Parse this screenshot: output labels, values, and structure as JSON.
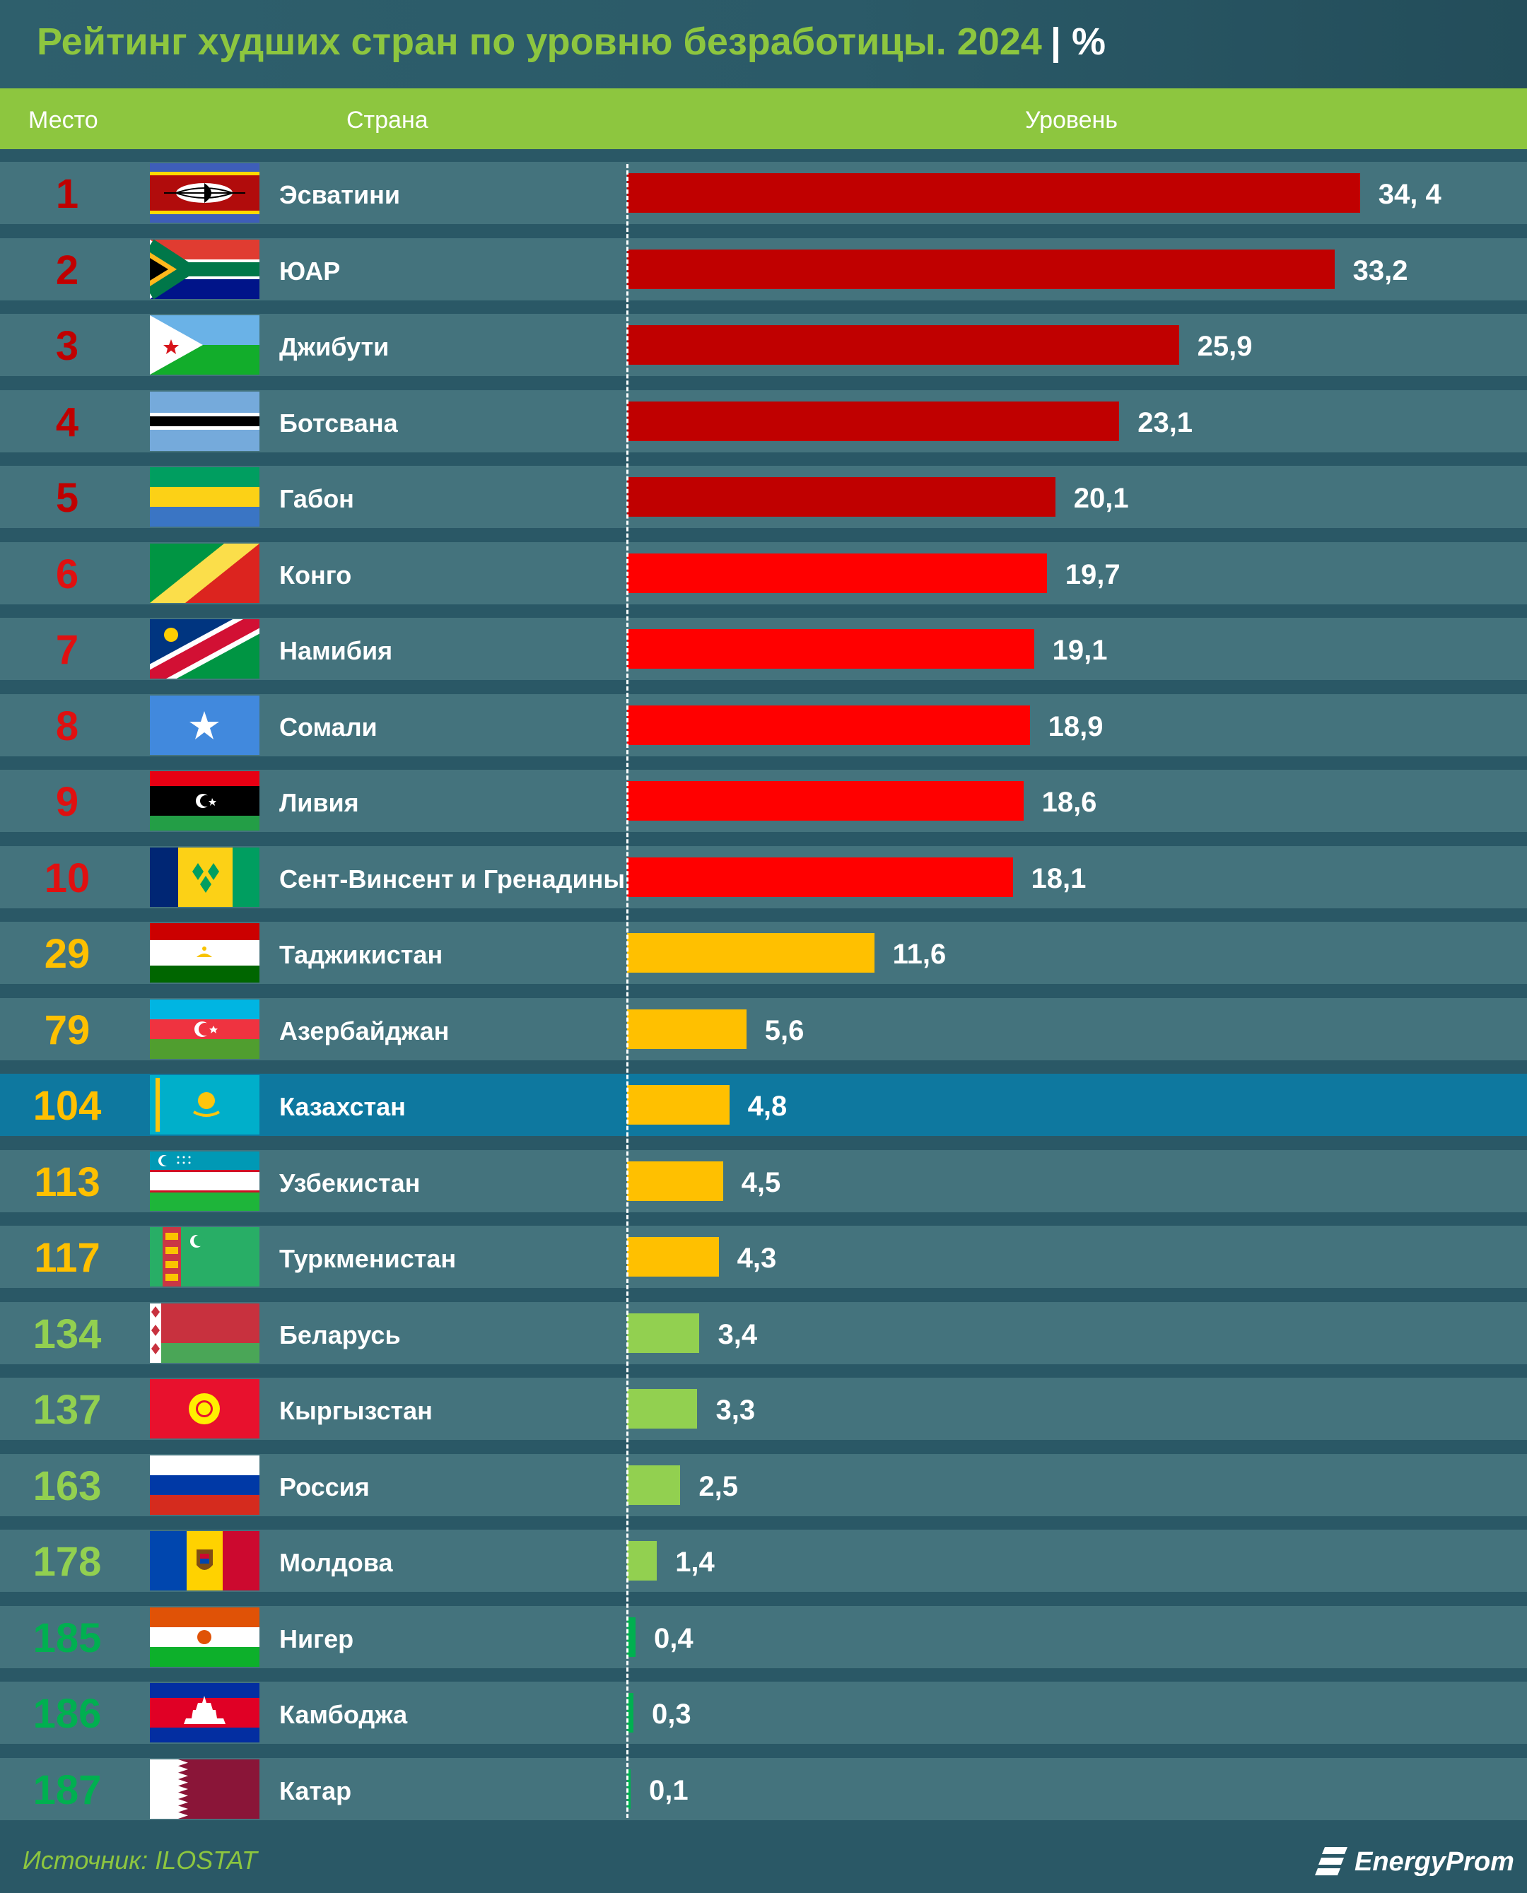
{
  "title": {
    "text": "Рейтинг худших стран по уровню безработицы. 2024",
    "separator": "|",
    "unit": "%"
  },
  "header": {
    "rank": "Место",
    "country": "Страна",
    "level": "Уровень"
  },
  "colors": {
    "dark_red": "#c00000",
    "red": "#ff0000",
    "amber": "#ffc000",
    "light_green": "#92d050",
    "green": "#00b050",
    "header_green": "#8dc63f",
    "row": "#44737d",
    "highlight": "#0e789f"
  },
  "chart_data": {
    "type": "bar",
    "orientation": "horizontal",
    "title": "Рейтинг худших стран по уровню безработицы. 2024 | %",
    "xlim": [
      0,
      36
    ],
    "categories": [
      "Эсватини",
      "ЮАР",
      "Джибути",
      "Ботсвана",
      "Габон",
      "Конго",
      "Намибия",
      "Сомали",
      "Ливия",
      "Сент-Винсент и Гренадины",
      "Таджикистан",
      "Азербайджан",
      "Казахстан",
      "Узбекистан",
      "Туркменистан",
      "Беларусь",
      "Кыргызстан",
      "Россия",
      "Молдова",
      "Нигер",
      "Камбоджа",
      "Катар"
    ],
    "values": [
      34.4,
      33.2,
      25.9,
      23.1,
      20.1,
      19.7,
      19.1,
      18.9,
      18.6,
      18.1,
      11.6,
      5.6,
      4.8,
      4.5,
      4.3,
      3.4,
      3.3,
      2.5,
      1.4,
      0.4,
      0.3,
      0.1
    ],
    "rows": [
      {
        "rank": "1",
        "country": "Эсватини",
        "value": 34.4,
        "label": "34, 4",
        "color": "#c00000",
        "rank_color": "#c00000",
        "flag": "eswatini-flag"
      },
      {
        "rank": "2",
        "country": "ЮАР",
        "value": 33.2,
        "label": "33,2",
        "color": "#c00000",
        "rank_color": "#c00000",
        "flag": "south-africa-flag"
      },
      {
        "rank": "3",
        "country": "Джибути",
        "value": 25.9,
        "label": "25,9",
        "color": "#c00000",
        "rank_color": "#c00000",
        "flag": "djibouti-flag"
      },
      {
        "rank": "4",
        "country": "Ботсвана",
        "value": 23.1,
        "label": "23,1",
        "color": "#c00000",
        "rank_color": "#c00000",
        "flag": "botswana-flag"
      },
      {
        "rank": "5",
        "country": "Габон",
        "value": 20.1,
        "label": "20,1",
        "color": "#c00000",
        "rank_color": "#c00000",
        "flag": "gabon-flag"
      },
      {
        "rank": "6",
        "country": "Конго",
        "value": 19.7,
        "label": "19,7",
        "color": "#ff0000",
        "rank_color": "#e01010",
        "flag": "congo-flag"
      },
      {
        "rank": "7",
        "country": "Намибия",
        "value": 19.1,
        "label": "19,1",
        "color": "#ff0000",
        "rank_color": "#e01010",
        "flag": "namibia-flag"
      },
      {
        "rank": "8",
        "country": "Сомали",
        "value": 18.9,
        "label": "18,9",
        "color": "#ff0000",
        "rank_color": "#e01010",
        "flag": "somalia-flag"
      },
      {
        "rank": "9",
        "country": "Ливия",
        "value": 18.6,
        "label": "18,6",
        "color": "#ff0000",
        "rank_color": "#e01010",
        "flag": "libya-flag"
      },
      {
        "rank": "10",
        "country": "Сент-Винсент и Гренадины",
        "value": 18.1,
        "label": "18,1",
        "color": "#ff0000",
        "rank_color": "#e01010",
        "flag": "st-vincent-flag"
      },
      {
        "rank": "29",
        "country": "Таджикистан",
        "value": 11.6,
        "label": "11,6",
        "color": "#ffc000",
        "rank_color": "#ffc000",
        "flag": "tajikistan-flag"
      },
      {
        "rank": "79",
        "country": "Азербайджан",
        "value": 5.6,
        "label": "5,6",
        "color": "#ffc000",
        "rank_color": "#ffc000",
        "flag": "azerbaijan-flag"
      },
      {
        "rank": "104",
        "country": "Казахстан",
        "value": 4.8,
        "label": "4,8",
        "color": "#ffc000",
        "rank_color": "#ffc000",
        "flag": "kazakhstan-flag",
        "highlight": true
      },
      {
        "rank": "113",
        "country": "Узбекистан",
        "value": 4.5,
        "label": "4,5",
        "color": "#ffc000",
        "rank_color": "#ffc000",
        "flag": "uzbekistan-flag"
      },
      {
        "rank": "117",
        "country": "Туркменистан",
        "value": 4.3,
        "label": "4,3",
        "color": "#ffc000",
        "rank_color": "#ffc000",
        "flag": "turkmenistan-flag"
      },
      {
        "rank": "134",
        "country": "Беларусь",
        "value": 3.4,
        "label": "3,4",
        "color": "#92d050",
        "rank_color": "#92d050",
        "flag": "belarus-flag"
      },
      {
        "rank": "137",
        "country": "Кыргызстан",
        "value": 3.3,
        "label": "3,3",
        "color": "#92d050",
        "rank_color": "#92d050",
        "flag": "kyrgyzstan-flag"
      },
      {
        "rank": "163",
        "country": "Россия",
        "value": 2.5,
        "label": "2,5",
        "color": "#92d050",
        "rank_color": "#92d050",
        "flag": "russia-flag"
      },
      {
        "rank": "178",
        "country": "Молдова",
        "value": 1.4,
        "label": "1,4",
        "color": "#92d050",
        "rank_color": "#92d050",
        "flag": "moldova-flag"
      },
      {
        "rank": "185",
        "country": "Нигер",
        "value": 0.4,
        "label": "0,4",
        "color": "#00b050",
        "rank_color": "#00b050",
        "flag": "niger-flag"
      },
      {
        "rank": "186",
        "country": "Камбоджа",
        "value": 0.3,
        "label": "0,3",
        "color": "#00b050",
        "rank_color": "#00b050",
        "flag": "cambodia-flag"
      },
      {
        "rank": "187",
        "country": "Катар",
        "value": 0.1,
        "label": "0,1",
        "color": "#00b050",
        "rank_color": "#00b050",
        "flag": "qatar-flag"
      }
    ]
  },
  "footer": {
    "source": "Источник: ILOSTAT",
    "logo": "EnergyProm"
  }
}
